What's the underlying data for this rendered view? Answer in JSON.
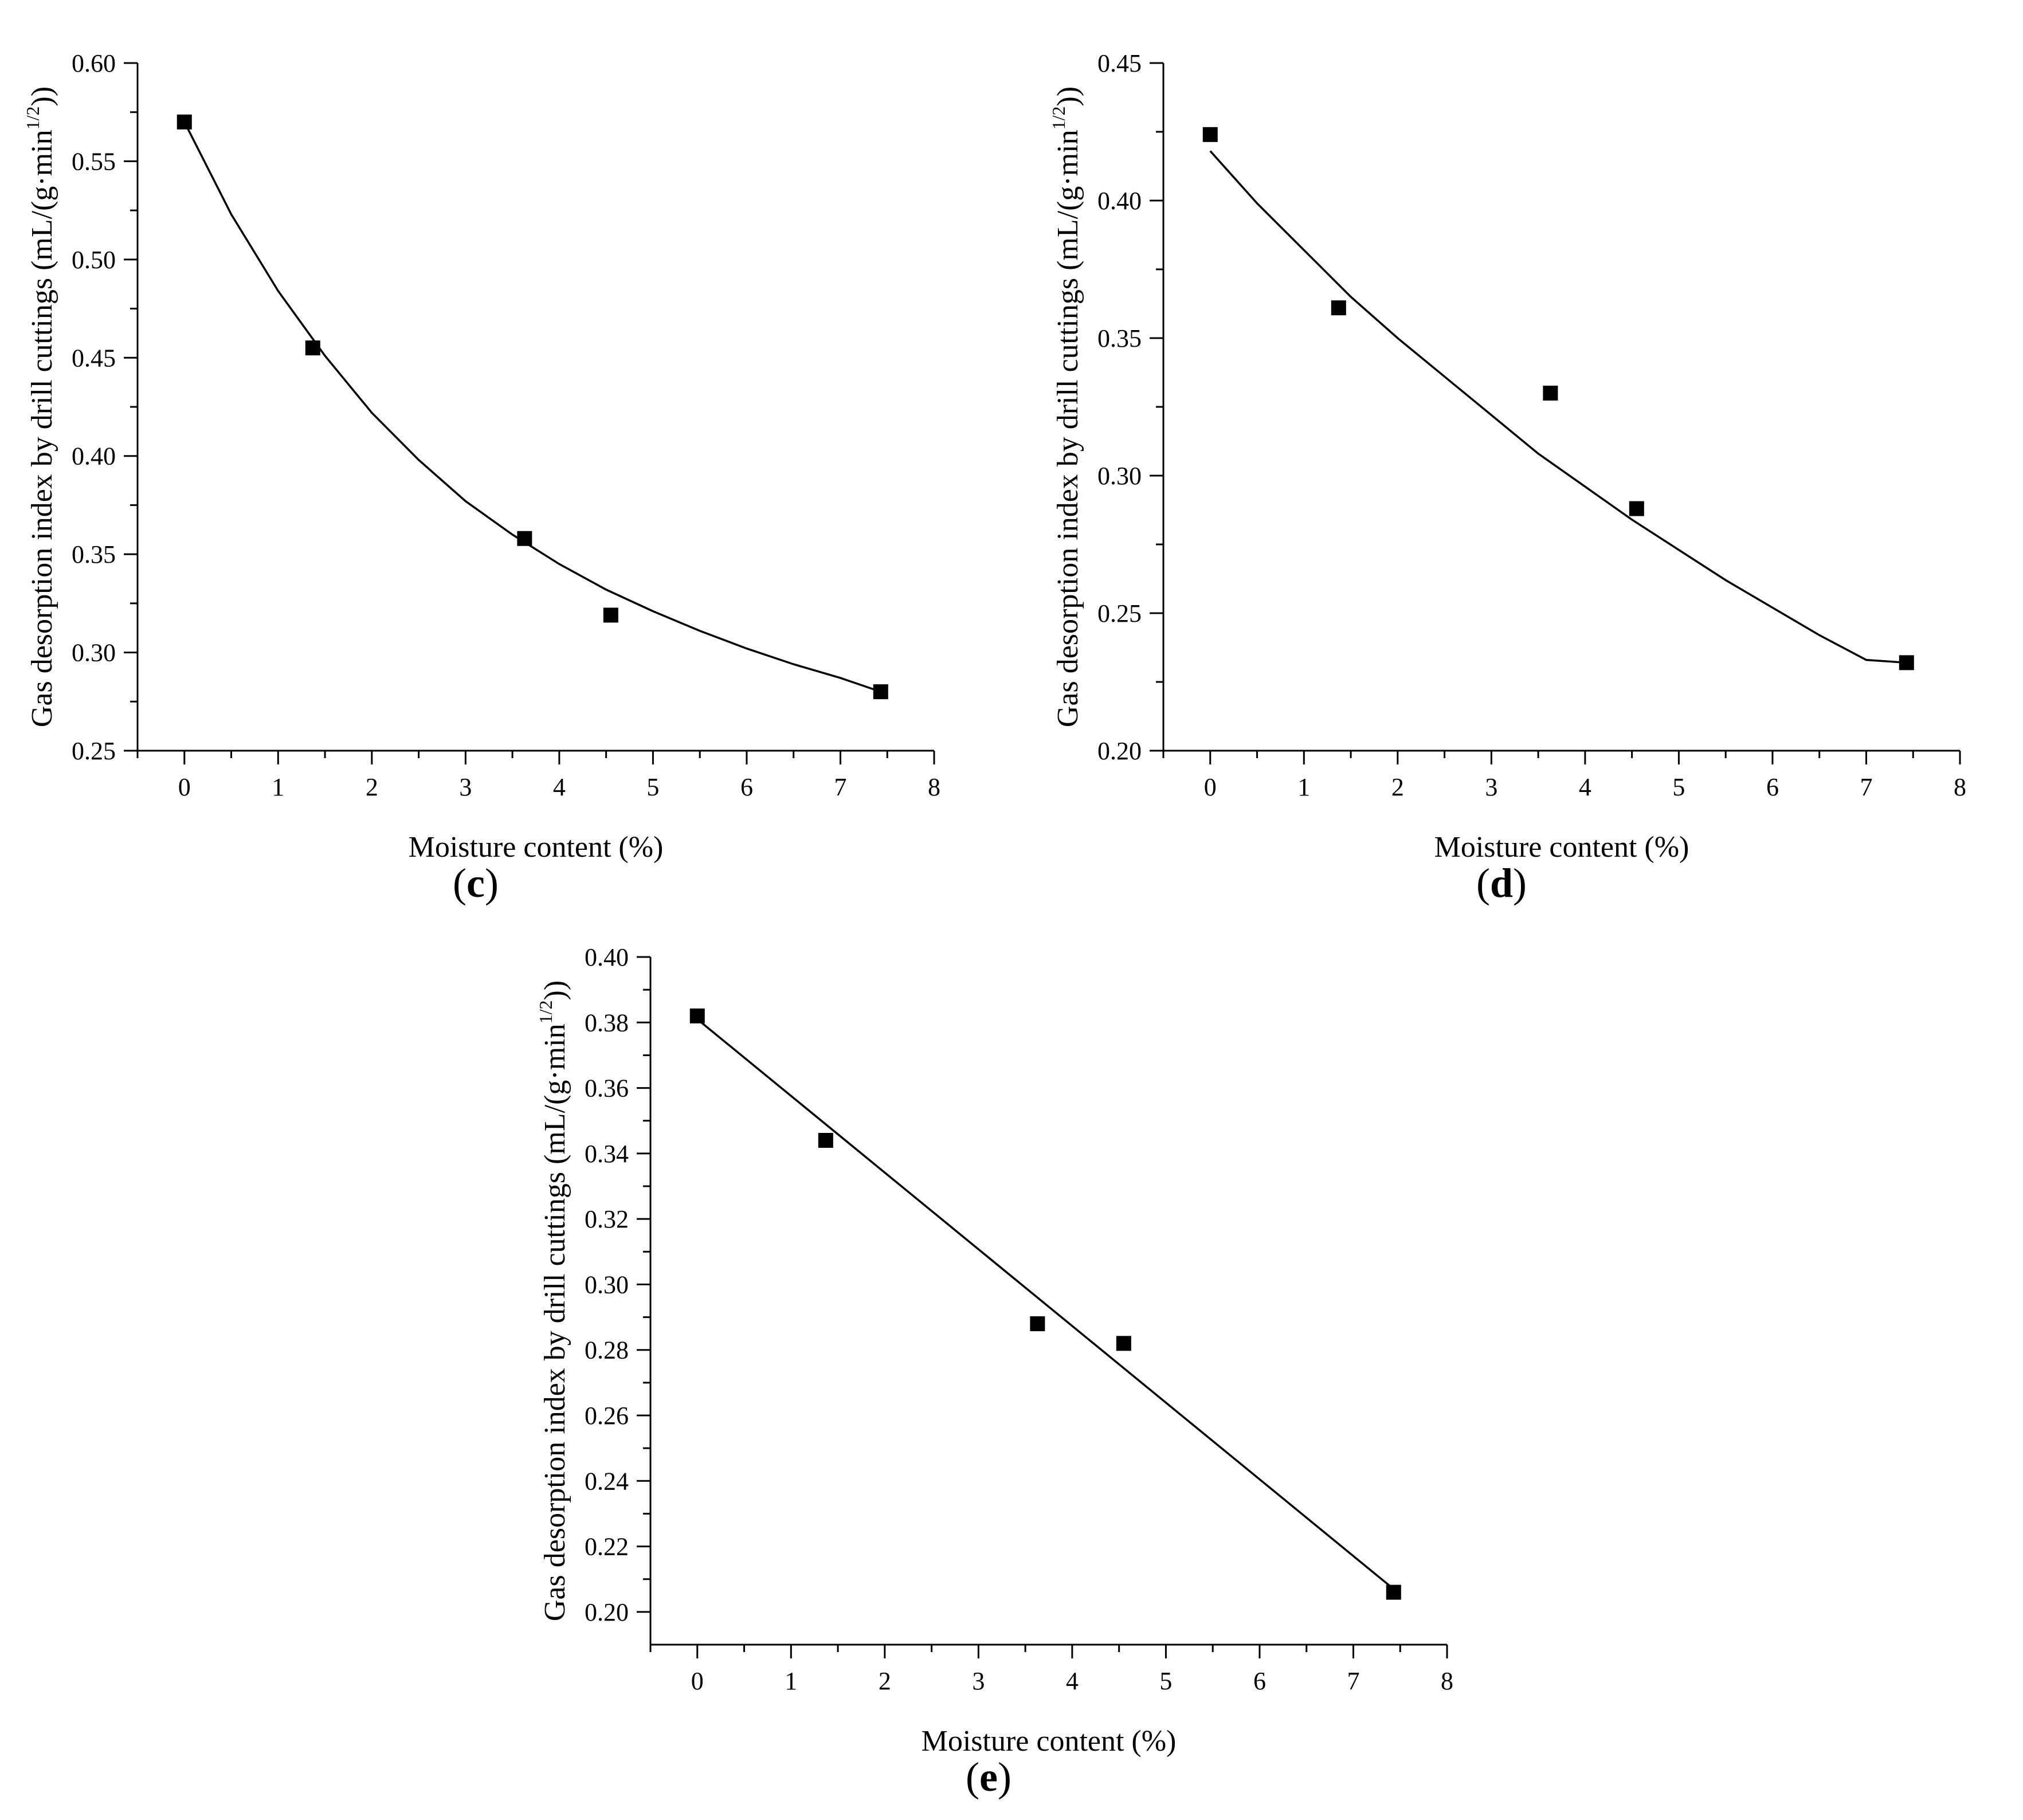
{
  "chart_data": [
    {
      "id": "c",
      "panel_label_open": "(",
      "panel_label_letter": "c",
      "panel_label_close": ")",
      "type": "scatter",
      "fit": "exponential-decay",
      "xlabel": "Moisture content (%)",
      "ylabel_main": "Gas desorption index by drill cuttings (mL/(g·min",
      "ylabel_sup": "1/2",
      "ylabel_end": "))",
      "xlim": [
        -0.5,
        8
      ],
      "ylim": [
        0.25,
        0.6
      ],
      "xticks": [
        0,
        1,
        2,
        3,
        4,
        5,
        6,
        7,
        8
      ],
      "yticks": [
        0.25,
        0.3,
        0.35,
        0.4,
        0.45,
        0.5,
        0.55,
        0.6
      ],
      "ytick_labels": [
        "0.25",
        "0.30",
        "0.35",
        "0.40",
        "0.45",
        "0.50",
        "0.55",
        "0.60"
      ],
      "x": [
        0,
        1.37,
        3.63,
        4.55,
        7.43
      ],
      "y": [
        0.57,
        0.455,
        0.358,
        0.319,
        0.28
      ],
      "fit_x": [
        0,
        0.5,
        1,
        1.5,
        2,
        2.5,
        3,
        3.5,
        4,
        4.5,
        5,
        5.5,
        6,
        6.5,
        7,
        7.43
      ],
      "fit_y": [
        0.57,
        0.523,
        0.484,
        0.451,
        0.422,
        0.398,
        0.377,
        0.36,
        0.345,
        0.332,
        0.321,
        0.311,
        0.302,
        0.294,
        0.287,
        0.28
      ]
    },
    {
      "id": "d",
      "panel_label_open": "(",
      "panel_label_letter": "d",
      "panel_label_close": ")",
      "type": "scatter",
      "fit": "decay",
      "xlabel": "Moisture content (%)",
      "ylabel_main": "Gas desorption index by drill cuttings (mL/(g·min",
      "ylabel_sup": "1/2",
      "ylabel_end": "))",
      "xlim": [
        -0.5,
        8
      ],
      "ylim": [
        0.2,
        0.45
      ],
      "xticks": [
        0,
        1,
        2,
        3,
        4,
        5,
        6,
        7,
        8
      ],
      "yticks": [
        0.2,
        0.25,
        0.3,
        0.35,
        0.4,
        0.45
      ],
      "ytick_labels": [
        "0.20",
        "0.25",
        "0.30",
        "0.35",
        "0.40",
        "0.45"
      ],
      "x": [
        0,
        1.37,
        3.63,
        4.55,
        7.43
      ],
      "y": [
        0.424,
        0.361,
        0.33,
        0.288,
        0.232
      ],
      "fit_x": [
        0,
        0.5,
        1,
        1.5,
        2,
        2.5,
        3,
        3.5,
        4,
        4.5,
        5,
        5.5,
        6,
        6.5,
        7,
        7.43
      ],
      "fit_y": [
        0.418,
        0.399,
        0.382,
        0.365,
        0.35,
        0.336,
        0.322,
        0.308,
        0.296,
        0.284,
        0.273,
        0.262,
        0.252,
        0.242,
        0.233,
        0.232
      ]
    },
    {
      "id": "e",
      "panel_label_open": "(",
      "panel_label_letter": "e",
      "panel_label_close": ")",
      "type": "scatter",
      "fit": "linear",
      "xlabel": "Moisture content (%)",
      "ylabel_main": "Gas desorption index by drill cuttings (mL/(g·min",
      "ylabel_sup": "1/2",
      "ylabel_end": "))",
      "xlim": [
        -0.5,
        8
      ],
      "ylim": [
        0.19,
        0.4
      ],
      "xticks": [
        0,
        1,
        2,
        3,
        4,
        5,
        6,
        7,
        8
      ],
      "yticks": [
        0.2,
        0.22,
        0.24,
        0.26,
        0.28,
        0.3,
        0.32,
        0.34,
        0.36,
        0.38,
        0.4
      ],
      "ytick_labels": [
        "0.20",
        "0.22",
        "0.24",
        "0.26",
        "0.28",
        "0.30",
        "0.32",
        "0.34",
        "0.36",
        "0.38",
        "0.40"
      ],
      "x": [
        0,
        1.37,
        3.63,
        4.55,
        7.43
      ],
      "y": [
        0.382,
        0.344,
        0.288,
        0.282,
        0.206
      ],
      "fit_x": [
        0,
        7.43
      ],
      "fit_y": [
        0.381,
        0.207
      ]
    }
  ]
}
